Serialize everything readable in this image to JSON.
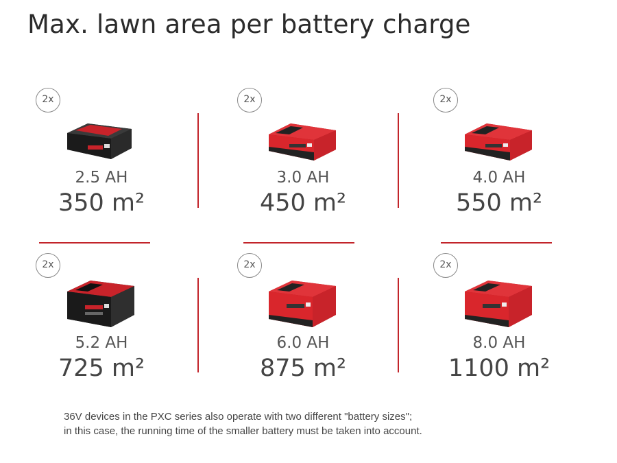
{
  "title": "Max. lawn area per battery charge",
  "items": [
    {
      "multiplier": "2x",
      "capacity": "2.5 AH",
      "area": "350 m²",
      "battery": "black-red-2.5ah-battery"
    },
    {
      "multiplier": "2x",
      "capacity": "3.0 AH",
      "area": "450 m²",
      "battery": "red-3.0ah-battery"
    },
    {
      "multiplier": "2x",
      "capacity": "4.0 AH",
      "area": "550 m²",
      "battery": "red-4.0ah-battery"
    },
    {
      "multiplier": "2x",
      "capacity": "5.2 AH",
      "area": "725 m²",
      "battery": "black-red-5.2ah-battery"
    },
    {
      "multiplier": "2x",
      "capacity": "6.0 AH",
      "area": "875 m²",
      "battery": "red-6.0ah-battery"
    },
    {
      "multiplier": "2x",
      "capacity": "8.0 AH",
      "area": "1100 m²",
      "battery": "red-8.0ah-battery"
    }
  ],
  "footnote": {
    "line1": "36V devices in the PXC series also operate with two different \"battery sizes\";",
    "line2": "in this case, the running time of the smaller battery must be taken into account."
  },
  "colors": {
    "accent": "#c2242a",
    "battery_red": "#d9262c",
    "battery_black": "#1e1e1e"
  }
}
